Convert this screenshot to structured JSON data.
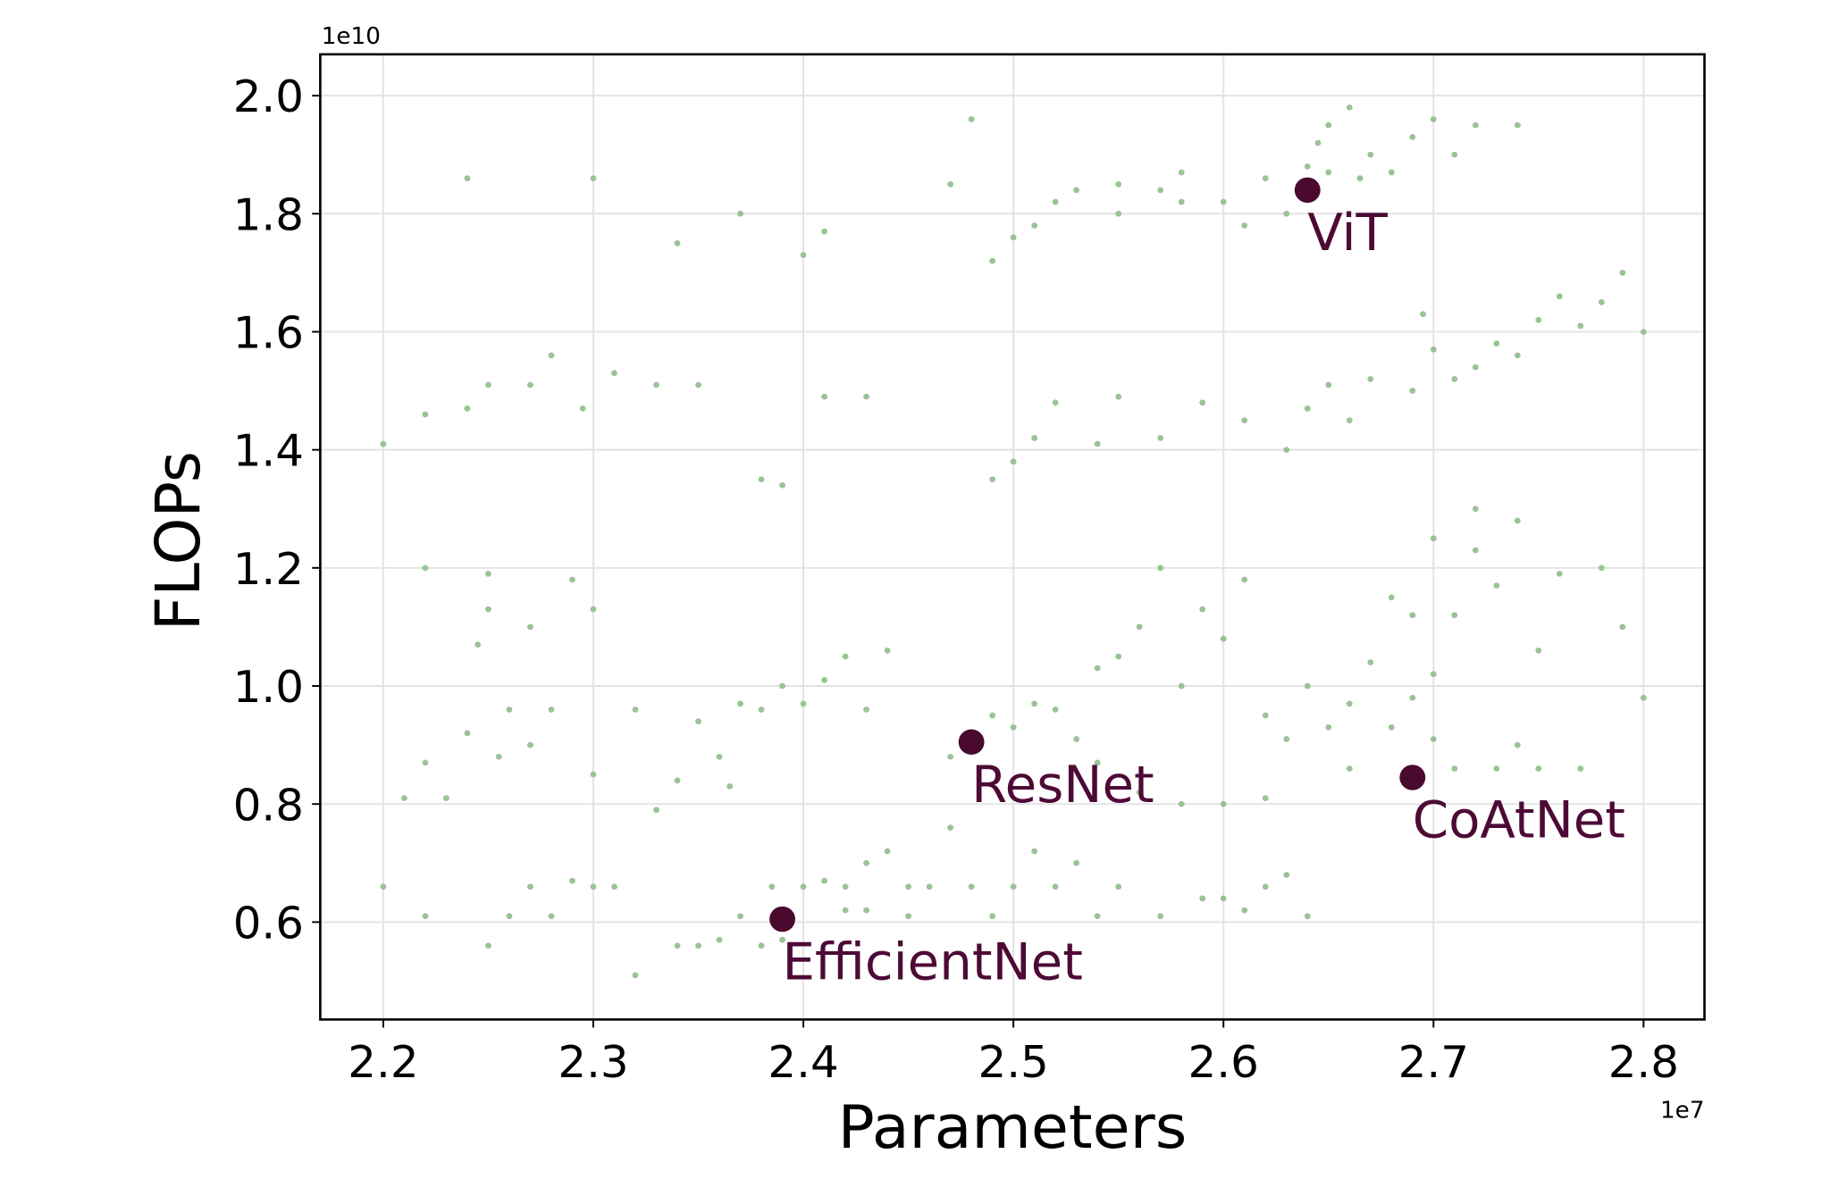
{
  "chart_data": {
    "type": "scatter",
    "title": "",
    "xlabel": "Parameters",
    "ylabel": "FLOPs",
    "x_offset_label": "1e7",
    "y_offset_label": "1e10",
    "xlim": [
      2.17,
      2.829
    ],
    "ylim": [
      0.435,
      2.07
    ],
    "xticks": [
      "2.2",
      "2.3",
      "2.4",
      "2.5",
      "2.6",
      "2.7",
      "2.8"
    ],
    "yticks": [
      "0.6",
      "0.8",
      "1.0",
      "1.2",
      "1.4",
      "1.6",
      "1.8",
      "2.0"
    ],
    "grid": true,
    "colors": {
      "cloud": "#8fbc8b",
      "highlight": "#4a0a2e",
      "label": "#4d0a36"
    },
    "cloud_points": [
      [
        2.47,
        1.85
      ],
      [
        2.49,
        1.72
      ],
      [
        2.5,
        1.76
      ],
      [
        2.51,
        1.78
      ],
      [
        2.52,
        1.82
      ],
      [
        2.53,
        1.84
      ],
      [
        2.55,
        1.8
      ],
      [
        2.57,
        1.84
      ],
      [
        2.58,
        1.87
      ],
      [
        2.6,
        1.82
      ],
      [
        2.61,
        1.78
      ],
      [
        2.62,
        1.86
      ],
      [
        2.63,
        1.8
      ],
      [
        2.64,
        1.88
      ],
      [
        2.645,
        1.92
      ],
      [
        2.65,
        1.95
      ],
      [
        2.66,
        1.98
      ],
      [
        2.67,
        1.9
      ],
      [
        2.68,
        1.87
      ],
      [
        2.69,
        1.93
      ],
      [
        2.7,
        1.96
      ],
      [
        2.71,
        1.9
      ],
      [
        2.72,
        1.95
      ],
      [
        2.74,
        1.95
      ],
      [
        2.58,
        1.82
      ],
      [
        2.55,
        1.85
      ],
      [
        2.65,
        1.87
      ],
      [
        2.665,
        1.86
      ],
      [
        2.24,
        1.86
      ],
      [
        2.3,
        1.86
      ],
      [
        2.41,
        1.77
      ],
      [
        2.4,
        1.73
      ],
      [
        2.48,
        1.96
      ],
      [
        2.37,
        1.8
      ],
      [
        2.34,
        1.75
      ],
      [
        2.2,
        1.41
      ],
      [
        2.22,
        1.46
      ],
      [
        2.24,
        1.47
      ],
      [
        2.25,
        1.51
      ],
      [
        2.27,
        1.51
      ],
      [
        2.28,
        1.56
      ],
      [
        2.295,
        1.47
      ],
      [
        2.31,
        1.53
      ],
      [
        2.33,
        1.51
      ],
      [
        2.35,
        1.51
      ],
      [
        2.38,
        1.35
      ],
      [
        2.39,
        1.34
      ],
      [
        2.41,
        1.49
      ],
      [
        2.43,
        1.49
      ],
      [
        2.49,
        1.35
      ],
      [
        2.5,
        1.38
      ],
      [
        2.51,
        1.42
      ],
      [
        2.52,
        1.48
      ],
      [
        2.54,
        1.41
      ],
      [
        2.55,
        1.49
      ],
      [
        2.57,
        1.42
      ],
      [
        2.59,
        1.48
      ],
      [
        2.61,
        1.45
      ],
      [
        2.63,
        1.4
      ],
      [
        2.64,
        1.47
      ],
      [
        2.65,
        1.51
      ],
      [
        2.67,
        1.52
      ],
      [
        2.69,
        1.5
      ],
      [
        2.7,
        1.57
      ],
      [
        2.71,
        1.52
      ],
      [
        2.72,
        1.54
      ],
      [
        2.73,
        1.58
      ],
      [
        2.74,
        1.56
      ],
      [
        2.75,
        1.62
      ],
      [
        2.76,
        1.66
      ],
      [
        2.77,
        1.61
      ],
      [
        2.78,
        1.65
      ],
      [
        2.79,
        1.7
      ],
      [
        2.8,
        1.6
      ],
      [
        2.695,
        1.63
      ],
      [
        2.66,
        1.45
      ],
      [
        2.21,
        0.81
      ],
      [
        2.22,
        0.87
      ],
      [
        2.23,
        0.81
      ],
      [
        2.24,
        0.92
      ],
      [
        2.245,
        1.07
      ],
      [
        2.25,
        1.13
      ],
      [
        2.255,
        0.88
      ],
      [
        2.26,
        0.96
      ],
      [
        2.27,
        0.9
      ],
      [
        2.27,
        1.1
      ],
      [
        2.28,
        0.96
      ],
      [
        2.29,
        1.18
      ],
      [
        2.3,
        0.85
      ],
      [
        2.3,
        1.13
      ],
      [
        2.32,
        0.96
      ],
      [
        2.22,
        1.2
      ],
      [
        2.25,
        1.19
      ],
      [
        2.35,
        0.94
      ],
      [
        2.36,
        0.88
      ],
      [
        2.37,
        0.97
      ],
      [
        2.38,
        0.96
      ],
      [
        2.39,
        1.0
      ],
      [
        2.4,
        0.97
      ],
      [
        2.41,
        1.01
      ],
      [
        2.42,
        1.05
      ],
      [
        2.43,
        0.96
      ],
      [
        2.44,
        1.06
      ],
      [
        2.33,
        0.79
      ],
      [
        2.34,
        0.84
      ],
      [
        2.365,
        0.83
      ],
      [
        2.2,
        0.66
      ],
      [
        2.22,
        0.61
      ],
      [
        2.25,
        0.56
      ],
      [
        2.26,
        0.61
      ],
      [
        2.27,
        0.66
      ],
      [
        2.28,
        0.61
      ],
      [
        2.29,
        0.67
      ],
      [
        2.3,
        0.66
      ],
      [
        2.31,
        0.66
      ],
      [
        2.32,
        0.51
      ],
      [
        2.34,
        0.56
      ],
      [
        2.35,
        0.56
      ],
      [
        2.36,
        0.57
      ],
      [
        2.37,
        0.61
      ],
      [
        2.38,
        0.56
      ],
      [
        2.385,
        0.66
      ],
      [
        2.4,
        0.66
      ],
      [
        2.41,
        0.67
      ],
      [
        2.42,
        0.66
      ],
      [
        2.43,
        0.7
      ],
      [
        2.44,
        0.72
      ],
      [
        2.45,
        0.66
      ],
      [
        2.46,
        0.66
      ],
      [
        2.47,
        0.76
      ],
      [
        2.48,
        0.66
      ],
      [
        2.49,
        0.61
      ],
      [
        2.5,
        0.66
      ],
      [
        2.51,
        0.72
      ],
      [
        2.52,
        0.66
      ],
      [
        2.53,
        0.7
      ],
      [
        2.54,
        0.61
      ],
      [
        2.55,
        0.66
      ],
      [
        2.57,
        0.61
      ],
      [
        2.59,
        0.64
      ],
      [
        2.6,
        0.64
      ],
      [
        2.61,
        0.62
      ],
      [
        2.62,
        0.66
      ],
      [
        2.63,
        0.68
      ],
      [
        2.64,
        0.61
      ],
      [
        2.45,
        0.61
      ],
      [
        2.42,
        0.62
      ],
      [
        2.39,
        0.57
      ],
      [
        2.43,
        0.62
      ],
      [
        2.47,
        0.88
      ],
      [
        2.48,
        0.92
      ],
      [
        2.49,
        0.95
      ],
      [
        2.5,
        0.93
      ],
      [
        2.51,
        0.97
      ],
      [
        2.52,
        0.96
      ],
      [
        2.53,
        0.91
      ],
      [
        2.54,
        1.03
      ],
      [
        2.55,
        1.05
      ],
      [
        2.56,
        1.1
      ],
      [
        2.57,
        1.2
      ],
      [
        2.58,
        1.0
      ],
      [
        2.59,
        1.13
      ],
      [
        2.6,
        1.08
      ],
      [
        2.61,
        1.18
      ],
      [
        2.62,
        0.95
      ],
      [
        2.63,
        0.91
      ],
      [
        2.64,
        1.0
      ],
      [
        2.65,
        0.93
      ],
      [
        2.66,
        0.86
      ],
      [
        2.67,
        1.04
      ],
      [
        2.68,
        1.15
      ],
      [
        2.69,
        1.12
      ],
      [
        2.7,
        0.91
      ],
      [
        2.71,
        1.12
      ],
      [
        2.72,
        1.23
      ],
      [
        2.73,
        1.17
      ],
      [
        2.74,
        0.9
      ],
      [
        2.75,
        1.06
      ],
      [
        2.76,
        1.19
      ],
      [
        2.77,
        0.86
      ],
      [
        2.78,
        1.2
      ],
      [
        2.79,
        1.1
      ],
      [
        2.8,
        0.98
      ],
      [
        2.7,
        1.25
      ],
      [
        2.72,
        1.3
      ],
      [
        2.74,
        1.28
      ],
      [
        2.71,
        0.86
      ],
      [
        2.73,
        0.86
      ],
      [
        2.75,
        0.86
      ],
      [
        2.6,
        0.8
      ],
      [
        2.58,
        0.8
      ],
      [
        2.62,
        0.81
      ],
      [
        2.56,
        0.82
      ],
      [
        2.54,
        0.87
      ],
      [
        2.66,
        0.97
      ],
      [
        2.68,
        0.93
      ],
      [
        2.7,
        1.02
      ],
      [
        2.69,
        0.98
      ]
    ],
    "highlighted": [
      {
        "label": "ViT",
        "x": 2.64,
        "y": 1.84
      },
      {
        "label": "ResNet",
        "x": 2.48,
        "y": 0.905
      },
      {
        "label": "CoAtNet",
        "x": 2.69,
        "y": 0.845
      },
      {
        "label": "EfficientNet",
        "x": 2.39,
        "y": 0.605
      }
    ]
  }
}
